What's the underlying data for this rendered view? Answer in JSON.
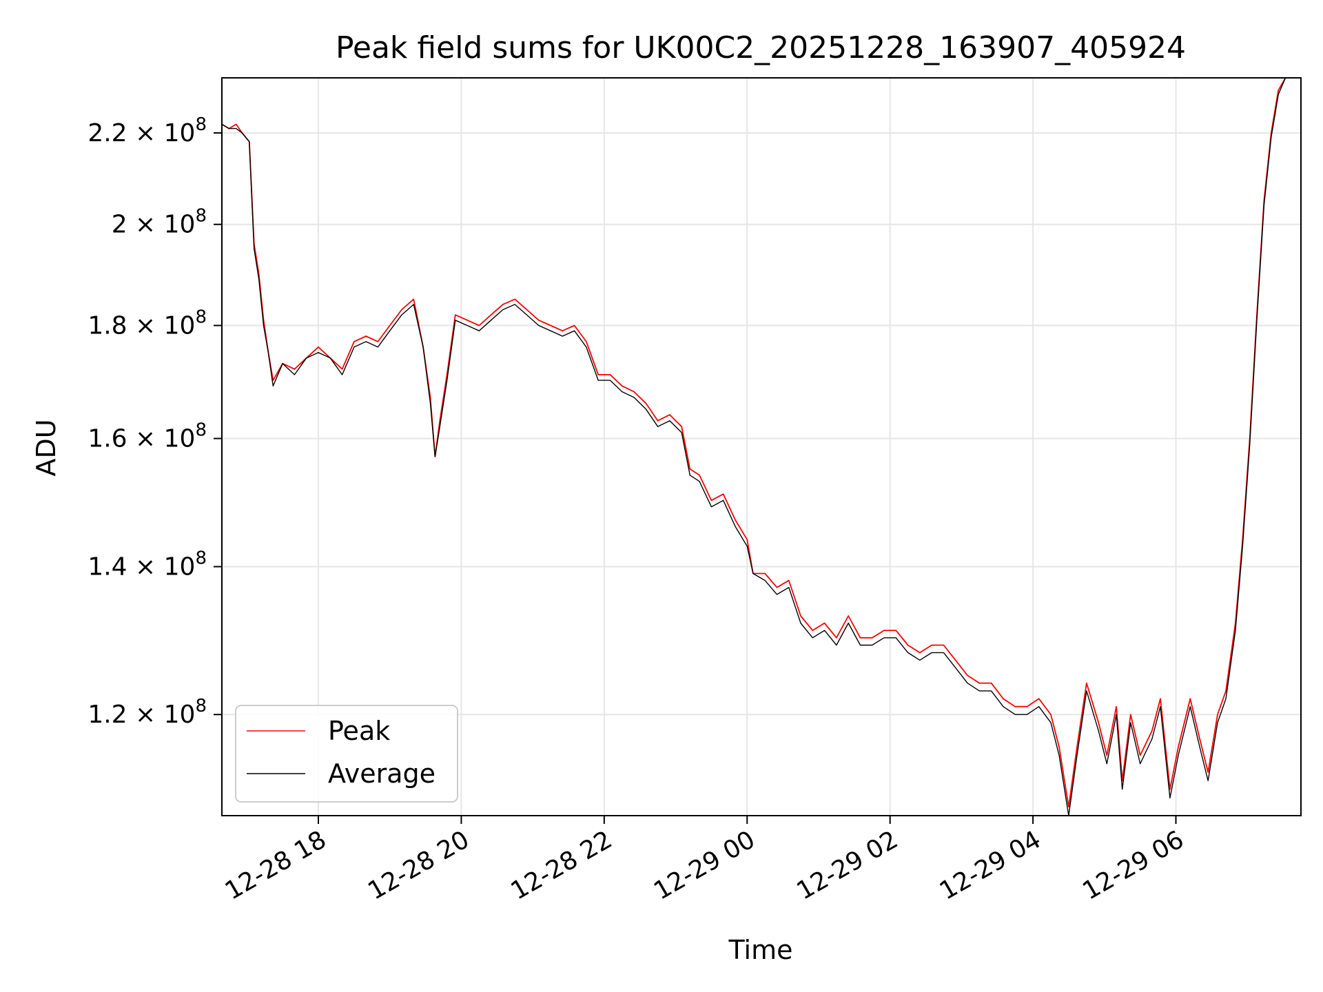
{
  "chart_data": {
    "type": "line",
    "title": "Peak field sums for UK00C2_20251228_163907_405924",
    "xlabel": "Time",
    "ylabel": "ADU",
    "y_scale": "log",
    "ylim": [
      108000000.0,
      233000000.0
    ],
    "xlim": [
      "2025-12-28 16:39",
      "2025-12-29 07:45"
    ],
    "grid": true,
    "legend_position": "lower-left",
    "x_ticks": [
      {
        "value": "2025-12-28 18:00",
        "label": "12-28 18"
      },
      {
        "value": "2025-12-28 20:00",
        "label": "12-28 20"
      },
      {
        "value": "2025-12-28 22:00",
        "label": "12-28 22"
      },
      {
        "value": "2025-12-29 00:00",
        "label": "12-29 00"
      },
      {
        "value": "2025-12-29 02:00",
        "label": "12-29 02"
      },
      {
        "value": "2025-12-29 04:00",
        "label": "12-29 04"
      },
      {
        "value": "2025-12-29 06:00",
        "label": "12-29 06"
      }
    ],
    "y_ticks": [
      {
        "value": 120000000.0,
        "mantissa": "1.2",
        "base": "10",
        "exp": "8"
      },
      {
        "value": 140000000.0,
        "mantissa": "1.4",
        "base": "10",
        "exp": "8"
      },
      {
        "value": 160000000.0,
        "mantissa": "1.6",
        "base": "10",
        "exp": "8"
      },
      {
        "value": 180000000.0,
        "mantissa": "1.8",
        "base": "10",
        "exp": "8"
      },
      {
        "value": 200000000.0,
        "mantissa": "2",
        "base": "10",
        "exp": "8"
      },
      {
        "value": 220000000.0,
        "mantissa": "2.2",
        "base": "10",
        "exp": "8"
      }
    ],
    "series": [
      {
        "name": "Peak",
        "color": "#ff0000",
        "points": [
          [
            "2025-12-28 16:39",
            222000000.0
          ],
          [
            "2025-12-28 16:45",
            221000000.0
          ],
          [
            "2025-12-28 16:51",
            222000000.0
          ],
          [
            "2025-12-28 16:56",
            220000000.0
          ],
          [
            "2025-12-28 17:02",
            218000000.0
          ],
          [
            "2025-12-28 17:06",
            196000000.0
          ],
          [
            "2025-12-28 17:10",
            190000000.0
          ],
          [
            "2025-12-28 17:14",
            181000000.0
          ],
          [
            "2025-12-28 17:18",
            175000000.0
          ],
          [
            "2025-12-28 17:22",
            170000000.0
          ],
          [
            "2025-12-28 17:30",
            173000000.0
          ],
          [
            "2025-12-28 17:40",
            172000000.0
          ],
          [
            "2025-12-28 17:50",
            174000000.0
          ],
          [
            "2025-12-28 18:00",
            176000000.0
          ],
          [
            "2025-12-28 18:10",
            174000000.0
          ],
          [
            "2025-12-28 18:20",
            172000000.0
          ],
          [
            "2025-12-28 18:30",
            177000000.0
          ],
          [
            "2025-12-28 18:40",
            178000000.0
          ],
          [
            "2025-12-28 18:50",
            177000000.0
          ],
          [
            "2025-12-28 19:00",
            180000000.0
          ],
          [
            "2025-12-28 19:10",
            183000000.0
          ],
          [
            "2025-12-28 19:20",
            185000000.0
          ],
          [
            "2025-12-28 19:28",
            176000000.0
          ],
          [
            "2025-12-28 19:34",
            167000000.0
          ],
          [
            "2025-12-28 19:38",
            157000000.0
          ],
          [
            "2025-12-28 19:42",
            163000000.0
          ],
          [
            "2025-12-28 19:48",
            171000000.0
          ],
          [
            "2025-12-28 19:55",
            182000000.0
          ],
          [
            "2025-12-28 20:05",
            181000000.0
          ],
          [
            "2025-12-28 20:15",
            180000000.0
          ],
          [
            "2025-12-28 20:25",
            182000000.0
          ],
          [
            "2025-12-28 20:35",
            184000000.0
          ],
          [
            "2025-12-28 20:45",
            185000000.0
          ],
          [
            "2025-12-28 20:55",
            183000000.0
          ],
          [
            "2025-12-28 21:05",
            181000000.0
          ],
          [
            "2025-12-28 21:15",
            180000000.0
          ],
          [
            "2025-12-28 21:25",
            179000000.0
          ],
          [
            "2025-12-28 21:35",
            180000000.0
          ],
          [
            "2025-12-28 21:45",
            177000000.0
          ],
          [
            "2025-12-28 21:55",
            171000000.0
          ],
          [
            "2025-12-28 22:05",
            171000000.0
          ],
          [
            "2025-12-28 22:15",
            169000000.0
          ],
          [
            "2025-12-28 22:25",
            168000000.0
          ],
          [
            "2025-12-28 22:35",
            166000000.0
          ],
          [
            "2025-12-28 22:45",
            163000000.0
          ],
          [
            "2025-12-28 22:55",
            164000000.0
          ],
          [
            "2025-12-28 23:05",
            162000000.0
          ],
          [
            "2025-12-28 23:12",
            155000000.0
          ],
          [
            "2025-12-28 23:20",
            154000000.0
          ],
          [
            "2025-12-28 23:30",
            150000000.0
          ],
          [
            "2025-12-28 23:40",
            151000000.0
          ],
          [
            "2025-12-28 23:50",
            147000000.0
          ],
          [
            "2025-12-29 00:00",
            144000000.0
          ],
          [
            "2025-12-29 00:05",
            139000000.0
          ],
          [
            "2025-12-29 00:15",
            139000000.0
          ],
          [
            "2025-12-29 00:25",
            137000000.0
          ],
          [
            "2025-12-29 00:35",
            138000000.0
          ],
          [
            "2025-12-29 00:45",
            133000000.0
          ],
          [
            "2025-12-29 00:55",
            131000000.0
          ],
          [
            "2025-12-29 01:05",
            132000000.0
          ],
          [
            "2025-12-29 01:15",
            130000000.0
          ],
          [
            "2025-12-29 01:25",
            133000000.0
          ],
          [
            "2025-12-29 01:35",
            130000000.0
          ],
          [
            "2025-12-29 01:45",
            130000000.0
          ],
          [
            "2025-12-29 01:55",
            131000000.0
          ],
          [
            "2025-12-29 02:05",
            131000000.0
          ],
          [
            "2025-12-29 02:15",
            129000000.0
          ],
          [
            "2025-12-29 02:25",
            128000000.0
          ],
          [
            "2025-12-29 02:35",
            129000000.0
          ],
          [
            "2025-12-29 02:45",
            129000000.0
          ],
          [
            "2025-12-29 02:55",
            127000000.0
          ],
          [
            "2025-12-29 03:05",
            125000000.0
          ],
          [
            "2025-12-29 03:15",
            124000000.0
          ],
          [
            "2025-12-29 03:25",
            124000000.0
          ],
          [
            "2025-12-29 03:35",
            122000000.0
          ],
          [
            "2025-12-29 03:45",
            121000000.0
          ],
          [
            "2025-12-29 03:55",
            121000000.0
          ],
          [
            "2025-12-29 04:05",
            122000000.0
          ],
          [
            "2025-12-29 04:15",
            120000000.0
          ],
          [
            "2025-12-29 04:22",
            116000000.0
          ],
          [
            "2025-12-29 04:30",
            109000000.0
          ],
          [
            "2025-12-29 04:37",
            116000000.0
          ],
          [
            "2025-12-29 04:45",
            124000000.0
          ],
          [
            "2025-12-29 04:55",
            119000000.0
          ],
          [
            "2025-12-29 05:02",
            115000000.0
          ],
          [
            "2025-12-29 05:10",
            121000000.0
          ],
          [
            "2025-12-29 05:15",
            112000000.0
          ],
          [
            "2025-12-29 05:22",
            120000000.0
          ],
          [
            "2025-12-29 05:30",
            115000000.0
          ],
          [
            "2025-12-29 05:40",
            118000000.0
          ],
          [
            "2025-12-29 05:47",
            122000000.0
          ],
          [
            "2025-12-29 05:55",
            111000000.0
          ],
          [
            "2025-12-29 06:02",
            116000000.0
          ],
          [
            "2025-12-29 06:12",
            122000000.0
          ],
          [
            "2025-12-29 06:20",
            117000000.0
          ],
          [
            "2025-12-29 06:27",
            113000000.0
          ],
          [
            "2025-12-29 06:35",
            120000000.0
          ],
          [
            "2025-12-29 06:42",
            123000000.0
          ],
          [
            "2025-12-29 06:50",
            132000000.0
          ],
          [
            "2025-12-29 06:56",
            144000000.0
          ],
          [
            "2025-12-29 07:02",
            160000000.0
          ],
          [
            "2025-12-29 07:08",
            182000000.0
          ],
          [
            "2025-12-29 07:14",
            205000000.0
          ],
          [
            "2025-12-29 07:20",
            220000000.0
          ],
          [
            "2025-12-29 07:26",
            230000000.0
          ],
          [
            "2025-12-29 07:32",
            233000000.0
          ],
          [
            "2025-12-29 07:45",
            233000000.0
          ]
        ]
      },
      {
        "name": "Average",
        "color": "#000000",
        "points": [
          [
            "2025-12-28 16:39",
            222000000.0
          ],
          [
            "2025-12-28 16:45",
            221000000.0
          ],
          [
            "2025-12-28 16:51",
            221000000.0
          ],
          [
            "2025-12-28 16:56",
            220000000.0
          ],
          [
            "2025-12-28 17:02",
            218000000.0
          ],
          [
            "2025-12-28 17:06",
            195000000.0
          ],
          [
            "2025-12-28 17:10",
            189000000.0
          ],
          [
            "2025-12-28 17:14",
            180000000.0
          ],
          [
            "2025-12-28 17:18",
            175000000.0
          ],
          [
            "2025-12-28 17:22",
            169000000.0
          ],
          [
            "2025-12-28 17:30",
            173000000.0
          ],
          [
            "2025-12-28 17:40",
            171000000.0
          ],
          [
            "2025-12-28 17:50",
            174000000.0
          ],
          [
            "2025-12-28 18:00",
            175000000.0
          ],
          [
            "2025-12-28 18:10",
            174000000.0
          ],
          [
            "2025-12-28 18:20",
            171000000.0
          ],
          [
            "2025-12-28 18:30",
            176000000.0
          ],
          [
            "2025-12-28 18:40",
            177000000.0
          ],
          [
            "2025-12-28 18:50",
            176000000.0
          ],
          [
            "2025-12-28 19:00",
            179000000.0
          ],
          [
            "2025-12-28 19:10",
            182000000.0
          ],
          [
            "2025-12-28 19:20",
            184000000.0
          ],
          [
            "2025-12-28 19:28",
            176000000.0
          ],
          [
            "2025-12-28 19:34",
            166000000.0
          ],
          [
            "2025-12-28 19:38",
            157000000.0
          ],
          [
            "2025-12-28 19:42",
            162000000.0
          ],
          [
            "2025-12-28 19:48",
            170000000.0
          ],
          [
            "2025-12-28 19:55",
            181000000.0
          ],
          [
            "2025-12-28 20:05",
            180000000.0
          ],
          [
            "2025-12-28 20:15",
            179000000.0
          ],
          [
            "2025-12-28 20:25",
            181000000.0
          ],
          [
            "2025-12-28 20:35",
            183000000.0
          ],
          [
            "2025-12-28 20:45",
            184000000.0
          ],
          [
            "2025-12-28 20:55",
            182000000.0
          ],
          [
            "2025-12-28 21:05",
            180000000.0
          ],
          [
            "2025-12-28 21:15",
            179000000.0
          ],
          [
            "2025-12-28 21:25",
            178000000.0
          ],
          [
            "2025-12-28 21:35",
            179000000.0
          ],
          [
            "2025-12-28 21:45",
            176000000.0
          ],
          [
            "2025-12-28 21:55",
            170000000.0
          ],
          [
            "2025-12-28 22:05",
            170000000.0
          ],
          [
            "2025-12-28 22:15",
            168000000.0
          ],
          [
            "2025-12-28 22:25",
            167000000.0
          ],
          [
            "2025-12-28 22:35",
            165000000.0
          ],
          [
            "2025-12-28 22:45",
            162000000.0
          ],
          [
            "2025-12-28 22:55",
            163000000.0
          ],
          [
            "2025-12-28 23:05",
            161000000.0
          ],
          [
            "2025-12-28 23:12",
            154000000.0
          ],
          [
            "2025-12-28 23:20",
            153000000.0
          ],
          [
            "2025-12-28 23:30",
            149000000.0
          ],
          [
            "2025-12-28 23:40",
            150000000.0
          ],
          [
            "2025-12-28 23:50",
            146000000.0
          ],
          [
            "2025-12-29 00:00",
            143000000.0
          ],
          [
            "2025-12-29 00:05",
            139000000.0
          ],
          [
            "2025-12-29 00:15",
            138000000.0
          ],
          [
            "2025-12-29 00:25",
            136000000.0
          ],
          [
            "2025-12-29 00:35",
            137000000.0
          ],
          [
            "2025-12-29 00:45",
            132000000.0
          ],
          [
            "2025-12-29 00:55",
            130000000.0
          ],
          [
            "2025-12-29 01:05",
            131000000.0
          ],
          [
            "2025-12-29 01:15",
            129000000.0
          ],
          [
            "2025-12-29 01:25",
            132000000.0
          ],
          [
            "2025-12-29 01:35",
            129000000.0
          ],
          [
            "2025-12-29 01:45",
            129000000.0
          ],
          [
            "2025-12-29 01:55",
            130000000.0
          ],
          [
            "2025-12-29 02:05",
            130000000.0
          ],
          [
            "2025-12-29 02:15",
            128000000.0
          ],
          [
            "2025-12-29 02:25",
            127000000.0
          ],
          [
            "2025-12-29 02:35",
            128000000.0
          ],
          [
            "2025-12-29 02:45",
            128000000.0
          ],
          [
            "2025-12-29 02:55",
            126000000.0
          ],
          [
            "2025-12-29 03:05",
            124000000.0
          ],
          [
            "2025-12-29 03:15",
            123000000.0
          ],
          [
            "2025-12-29 03:25",
            123000000.0
          ],
          [
            "2025-12-29 03:35",
            121000000.0
          ],
          [
            "2025-12-29 03:45",
            120000000.0
          ],
          [
            "2025-12-29 03:55",
            120000000.0
          ],
          [
            "2025-12-29 04:05",
            121000000.0
          ],
          [
            "2025-12-29 04:15",
            119000000.0
          ],
          [
            "2025-12-29 04:22",
            115000000.0
          ],
          [
            "2025-12-29 04:30",
            108000000.0
          ],
          [
            "2025-12-29 04:37",
            115000000.0
          ],
          [
            "2025-12-29 04:45",
            123000000.0
          ],
          [
            "2025-12-29 04:55",
            118000000.0
          ],
          [
            "2025-12-29 05:02",
            114000000.0
          ],
          [
            "2025-12-29 05:10",
            120000000.0
          ],
          [
            "2025-12-29 05:15",
            111000000.0
          ],
          [
            "2025-12-29 05:22",
            119000000.0
          ],
          [
            "2025-12-29 05:30",
            114000000.0
          ],
          [
            "2025-12-29 05:40",
            117000000.0
          ],
          [
            "2025-12-29 05:47",
            121000000.0
          ],
          [
            "2025-12-29 05:55",
            110000000.0
          ],
          [
            "2025-12-29 06:02",
            115000000.0
          ],
          [
            "2025-12-29 06:12",
            121000000.0
          ],
          [
            "2025-12-29 06:20",
            116000000.0
          ],
          [
            "2025-12-29 06:27",
            112000000.0
          ],
          [
            "2025-12-29 06:35",
            119000000.0
          ],
          [
            "2025-12-29 06:42",
            122000000.0
          ],
          [
            "2025-12-29 06:50",
            131000000.0
          ],
          [
            "2025-12-29 06:56",
            143000000.0
          ],
          [
            "2025-12-29 07:02",
            159000000.0
          ],
          [
            "2025-12-29 07:08",
            181000000.0
          ],
          [
            "2025-12-29 07:14",
            204000000.0
          ],
          [
            "2025-12-29 07:20",
            219000000.0
          ],
          [
            "2025-12-29 07:26",
            229000000.0
          ],
          [
            "2025-12-29 07:32",
            233000000.0
          ],
          [
            "2025-12-29 07:45",
            233000000.0
          ]
        ]
      }
    ]
  }
}
